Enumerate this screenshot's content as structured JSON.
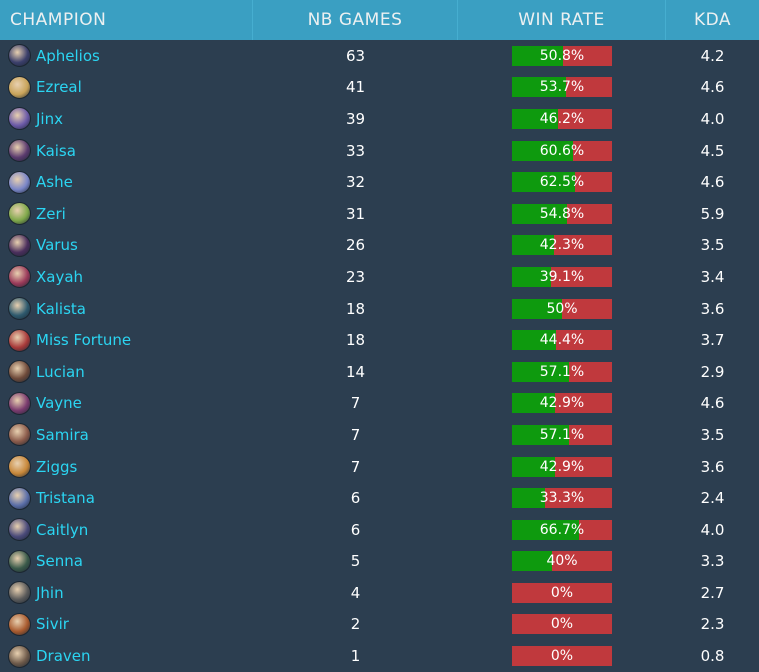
{
  "header": {
    "champion": "CHAMPION",
    "games": "NB GAMES",
    "winrate": "WIN RATE",
    "kda": "KDA"
  },
  "colors": {
    "header_bg": "#3a9fc2",
    "body_bg": "#2c3e50",
    "champion_text": "#2bd5f2",
    "win_bar": "#0e9a0e",
    "loss_bar": "#c0393d"
  },
  "rows": [
    {
      "name": "Aphelios",
      "games": "63",
      "winrate_label": "50.8%",
      "winrate": 50.8,
      "kda": "4.2",
      "avatar_color": "#3b3f6b"
    },
    {
      "name": "Ezreal",
      "games": "41",
      "winrate_label": "53.7%",
      "winrate": 53.7,
      "kda": "4.6",
      "avatar_color": "#c9a45a"
    },
    {
      "name": "Jinx",
      "games": "39",
      "winrate_label": "46.2%",
      "winrate": 46.2,
      "kda": "4.0",
      "avatar_color": "#6b5aa8"
    },
    {
      "name": "Kaisa",
      "games": "33",
      "winrate_label": "60.6%",
      "winrate": 60.6,
      "kda": "4.5",
      "avatar_color": "#5a3a6e"
    },
    {
      "name": "Ashe",
      "games": "32",
      "winrate_label": "62.5%",
      "winrate": 62.5,
      "kda": "4.6",
      "avatar_color": "#7a86c8"
    },
    {
      "name": "Zeri",
      "games": "31",
      "winrate_label": "54.8%",
      "winrate": 54.8,
      "kda": "5.9",
      "avatar_color": "#7fa84a"
    },
    {
      "name": "Varus",
      "games": "26",
      "winrate_label": "42.3%",
      "winrate": 42.3,
      "kda": "3.5",
      "avatar_color": "#4a2e5c"
    },
    {
      "name": "Xayah",
      "games": "23",
      "winrate_label": "39.1%",
      "winrate": 39.1,
      "kda": "3.4",
      "avatar_color": "#9a3a5a"
    },
    {
      "name": "Kalista",
      "games": "18",
      "winrate_label": "50%",
      "winrate": 50,
      "kda": "3.6",
      "avatar_color": "#2e5a6e"
    },
    {
      "name": "Miss Fortune",
      "games": "18",
      "winrate_label": "44.4%",
      "winrate": 44.4,
      "kda": "3.7",
      "avatar_color": "#a83a3a"
    },
    {
      "name": "Lucian",
      "games": "14",
      "winrate_label": "57.1%",
      "winrate": 57.1,
      "kda": "2.9",
      "avatar_color": "#6e4a3a"
    },
    {
      "name": "Vayne",
      "games": "7",
      "winrate_label": "42.9%",
      "winrate": 42.9,
      "kda": "4.6",
      "avatar_color": "#7a3a6e"
    },
    {
      "name": "Samira",
      "games": "7",
      "winrate_label": "57.1%",
      "winrate": 57.1,
      "kda": "3.5",
      "avatar_color": "#8a5a4a"
    },
    {
      "name": "Ziggs",
      "games": "7",
      "winrate_label": "42.9%",
      "winrate": 42.9,
      "kda": "3.6",
      "avatar_color": "#c8883a"
    },
    {
      "name": "Tristana",
      "games": "6",
      "winrate_label": "33.3%",
      "winrate": 33.3,
      "kda": "2.4",
      "avatar_color": "#5a6ea8"
    },
    {
      "name": "Caitlyn",
      "games": "6",
      "winrate_label": "66.7%",
      "winrate": 66.7,
      "kda": "4.0",
      "avatar_color": "#4a4a7a"
    },
    {
      "name": "Senna",
      "games": "5",
      "winrate_label": "40%",
      "winrate": 40,
      "kda": "3.3",
      "avatar_color": "#3a5a4a"
    },
    {
      "name": "Jhin",
      "games": "4",
      "winrate_label": "0%",
      "winrate": 0,
      "kda": "2.7",
      "avatar_color": "#5a5a5a"
    },
    {
      "name": "Sivir",
      "games": "2",
      "winrate_label": "0%",
      "winrate": 0,
      "kda": "2.3",
      "avatar_color": "#a85a2e"
    },
    {
      "name": "Draven",
      "games": "1",
      "winrate_label": "0%",
      "winrate": 0,
      "kda": "0.8",
      "avatar_color": "#6e5a4a"
    }
  ]
}
